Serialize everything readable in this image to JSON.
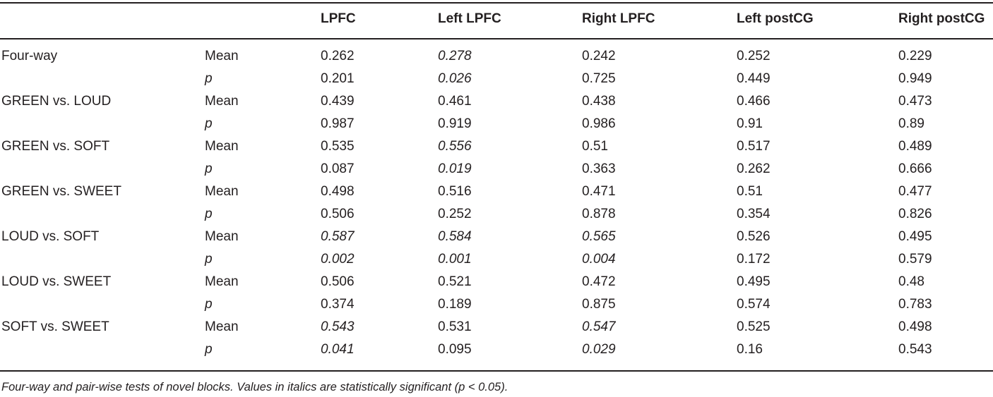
{
  "table": {
    "headers": [
      "",
      "",
      "LPFC",
      "Left LPFC",
      "Right LPFC",
      "Left postCG",
      "Right postCG"
    ],
    "rows": [
      {
        "test": "Four-way",
        "stat": "Mean",
        "values": [
          "0.262",
          "0.278",
          "0.242",
          "0.252",
          "0.229"
        ],
        "italic": [
          false,
          true,
          false,
          false,
          false
        ]
      },
      {
        "test": "",
        "stat": "p",
        "values": [
          "0.201",
          "0.026",
          "0.725",
          "0.449",
          "0.949"
        ],
        "italic": [
          false,
          true,
          false,
          false,
          false
        ]
      },
      {
        "test": "GREEN vs. LOUD",
        "stat": "Mean",
        "values": [
          "0.439",
          "0.461",
          "0.438",
          "0.466",
          "0.473"
        ],
        "italic": [
          false,
          false,
          false,
          false,
          false
        ]
      },
      {
        "test": "",
        "stat": "p",
        "values": [
          "0.987",
          "0.919",
          "0.986",
          "0.91",
          "0.89"
        ],
        "italic": [
          false,
          false,
          false,
          false,
          false
        ]
      },
      {
        "test": "GREEN vs. SOFT",
        "stat": "Mean",
        "values": [
          "0.535",
          "0.556",
          "0.51",
          "0.517",
          "0.489"
        ],
        "italic": [
          false,
          true,
          false,
          false,
          false
        ]
      },
      {
        "test": "",
        "stat": "p",
        "values": [
          "0.087",
          "0.019",
          "0.363",
          "0.262",
          "0.666"
        ],
        "italic": [
          false,
          true,
          false,
          false,
          false
        ]
      },
      {
        "test": "GREEN vs. SWEET",
        "stat": "Mean",
        "values": [
          "0.498",
          "0.516",
          "0.471",
          "0.51",
          "0.477"
        ],
        "italic": [
          false,
          false,
          false,
          false,
          false
        ]
      },
      {
        "test": "",
        "stat": "p",
        "values": [
          "0.506",
          "0.252",
          "0.878",
          "0.354",
          "0.826"
        ],
        "italic": [
          false,
          false,
          false,
          false,
          false
        ]
      },
      {
        "test": "LOUD vs. SOFT",
        "stat": "Mean",
        "values": [
          "0.587",
          "0.584",
          "0.565",
          "0.526",
          "0.495"
        ],
        "italic": [
          true,
          true,
          true,
          false,
          false
        ]
      },
      {
        "test": "",
        "stat": "p",
        "values": [
          "0.002",
          "0.001",
          "0.004",
          "0.172",
          "0.579"
        ],
        "italic": [
          true,
          true,
          true,
          false,
          false
        ]
      },
      {
        "test": "LOUD vs. SWEET",
        "stat": "Mean",
        "values": [
          "0.506",
          "0.521",
          "0.472",
          "0.495",
          "0.48"
        ],
        "italic": [
          false,
          false,
          false,
          false,
          false
        ]
      },
      {
        "test": "",
        "stat": "p",
        "values": [
          "0.374",
          "0.189",
          "0.875",
          "0.574",
          "0.783"
        ],
        "italic": [
          false,
          false,
          false,
          false,
          false
        ]
      },
      {
        "test": "SOFT vs. SWEET",
        "stat": "Mean",
        "values": [
          "0.543",
          "0.531",
          "0.547",
          "0.525",
          "0.498"
        ],
        "italic": [
          true,
          false,
          true,
          false,
          false
        ]
      },
      {
        "test": "",
        "stat": "p",
        "values": [
          "0.041",
          "0.095",
          "0.029",
          "0.16",
          "0.543"
        ],
        "italic": [
          true,
          false,
          true,
          false,
          false
        ]
      }
    ]
  },
  "caption": "Four-way and pair-wise tests of novel blocks. Values in italics are statistically significant (p < 0.05)."
}
